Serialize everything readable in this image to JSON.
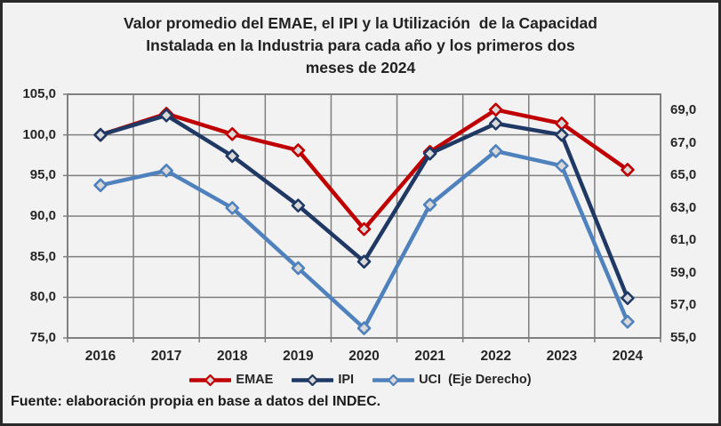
{
  "title": {
    "lines": [
      "Valor promedio del EMAE, el IPI y la Utilización  de la Capacidad",
      "Instalada en la Industria para cada año y los primeros dos",
      "meses de 2024"
    ]
  },
  "footer": {
    "source_note": "Fuente: elaboración propia en base a datos del INDEC."
  },
  "legend": {
    "items": [
      {
        "label": "EMAE",
        "color": "#C00000"
      },
      {
        "label": "IPI",
        "color": "#1F3864"
      },
      {
        "label": "UCI  (Eje Derecho)",
        "color": "#4F81BD"
      }
    ]
  },
  "chart_data": {
    "type": "line",
    "title": "Valor promedio del EMAE, el IPI y la Utilización de la Capacidad Instalada en la Industria para cada año y los primeros dos meses de 2024",
    "categories": [
      "2016",
      "2017",
      "2018",
      "2019",
      "2020",
      "2021",
      "2022",
      "2023",
      "2024"
    ],
    "series": [
      {
        "name": "EMAE",
        "axis": "left",
        "color": "#C00000",
        "marker_fill": "#D9D9D9",
        "values": [
          100.0,
          102.6,
          100.1,
          98.1,
          88.4,
          97.9,
          103.1,
          101.4,
          95.7
        ]
      },
      {
        "name": "IPI",
        "axis": "left",
        "color": "#1F3864",
        "marker_fill": "#D9D9D9",
        "values": [
          100.0,
          102.4,
          97.4,
          91.3,
          84.4,
          97.7,
          101.4,
          100.0,
          79.9
        ]
      },
      {
        "name": "UCI (Eje Derecho)",
        "axis": "right",
        "color": "#4F81BD",
        "marker_fill": "#D9D9D9",
        "values": [
          64.4,
          65.3,
          63.0,
          59.3,
          55.6,
          63.2,
          66.5,
          65.6,
          56.0
        ]
      }
    ],
    "left_axis": {
      "min": 75,
      "max": 105,
      "step": 5,
      "tick_labels": [
        "105,0",
        "100,0",
        "95,0",
        "90,0",
        "85,0",
        "80,0",
        "75,0"
      ]
    },
    "right_axis": {
      "min": 55,
      "max": 70,
      "label_step": 2,
      "tick_labels": [
        "69,0",
        "67,0",
        "65,0",
        "63,0",
        "61,0",
        "59,0",
        "57,0",
        "55,0"
      ]
    },
    "grid": true,
    "legend_position": "bottom"
  },
  "colors": {
    "background": "#F2F2F2",
    "grid": "#7F7F7F",
    "text": "#262626",
    "frame": "#2A2A2A"
  }
}
